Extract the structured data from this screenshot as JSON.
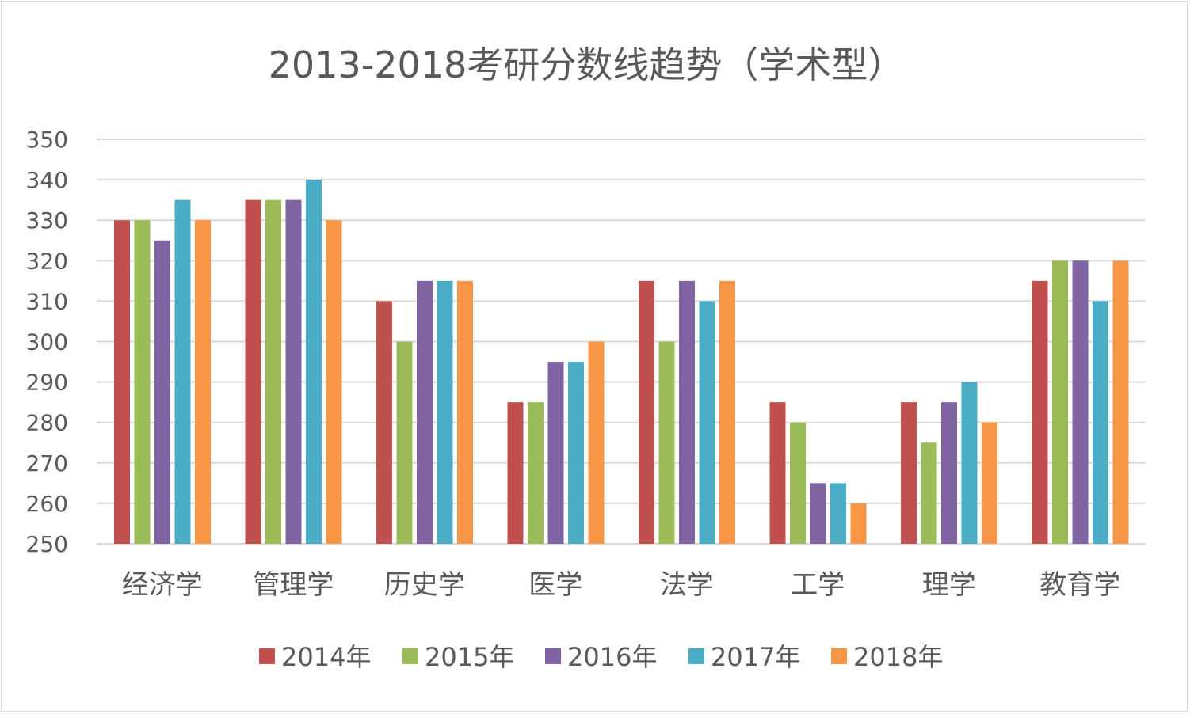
{
  "chart_data": {
    "type": "bar",
    "title": "2013-2018考研分数线趋势（学术型）",
    "xlabel": "",
    "ylabel": "",
    "ylim": [
      250,
      350
    ],
    "yticks": [
      "250",
      "260",
      "270",
      "280",
      "290",
      "300",
      "310",
      "320",
      "330",
      "340",
      "350"
    ],
    "grid": true,
    "legend_position": "bottom",
    "categories": [
      "经济学",
      "管理学",
      "历史学",
      "医学",
      "法学",
      "工学",
      "理学",
      "教育学"
    ],
    "series": [
      {
        "name": "2014年",
        "color": "#C0504D",
        "values": [
          330,
          335,
          310,
          285,
          315,
          285,
          285,
          315
        ]
      },
      {
        "name": "2015年",
        "color": "#9BBB59",
        "values": [
          330,
          335,
          300,
          285,
          300,
          280,
          275,
          320
        ]
      },
      {
        "name": "2016年",
        "color": "#8064A2",
        "values": [
          325,
          335,
          315,
          295,
          315,
          265,
          285,
          320
        ]
      },
      {
        "name": "2017年",
        "color": "#4BACC6",
        "values": [
          335,
          340,
          315,
          295,
          310,
          265,
          290,
          310
        ]
      },
      {
        "name": "2018年",
        "color": "#F79646",
        "values": [
          330,
          330,
          315,
          300,
          315,
          260,
          280,
          320
        ]
      }
    ]
  }
}
